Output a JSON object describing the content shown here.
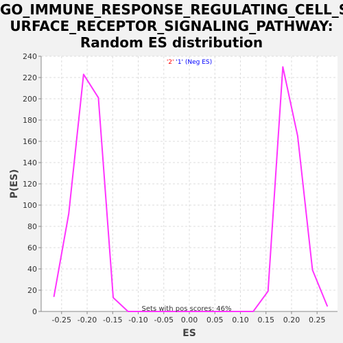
{
  "chart_data": {
    "type": "line",
    "title_lines": [
      "GO_IMMUNE_RESPONSE_REGULATING_CELL_S",
      "URFACE_RECEPTOR_SIGNALING_PATHWAY:",
      "Random ES distribution"
    ],
    "xlabel": "ES",
    "ylabel": "P(ES)",
    "xlim": [
      -0.29,
      0.29
    ],
    "ylim": [
      0,
      240
    ],
    "xticks": [
      -0.25,
      -0.2,
      -0.15,
      -0.1,
      -0.05,
      0.0,
      0.05,
      0.1,
      0.15,
      0.2,
      0.25
    ],
    "xtick_labels": [
      "-0.25",
      "-0.20",
      "-0.15",
      "-0.10",
      "-0.05",
      "0.00",
      "0.05",
      "0.10",
      "0.15",
      "0.20",
      "0.25"
    ],
    "yticks": [
      0,
      20,
      40,
      60,
      80,
      100,
      120,
      140,
      160,
      180,
      200,
      220,
      240
    ],
    "ytick_labels": [
      "0",
      "20",
      "40",
      "60",
      "80",
      "100",
      "120",
      "140",
      "160",
      "180",
      "200",
      "220",
      "240"
    ],
    "grid": true,
    "legend": {
      "placement": "top-center",
      "label_pos": "'2'",
      "label_neg": "'1' (Neg ES)",
      "color_pos": "#ff0000",
      "color_neg": "#0000ff"
    },
    "annotation": "Sets with pos scores: 46%",
    "series": [
      {
        "color": "#ff33ff",
        "x": [
          -0.265,
          -0.236,
          -0.207,
          -0.178,
          -0.149,
          -0.12,
          -0.091,
          0.125,
          0.154,
          0.183,
          0.212,
          0.241,
          0.27
        ],
        "y": [
          14,
          92,
          223,
          201,
          13,
          0,
          0,
          0,
          19,
          230,
          165,
          39,
          5
        ]
      }
    ]
  }
}
